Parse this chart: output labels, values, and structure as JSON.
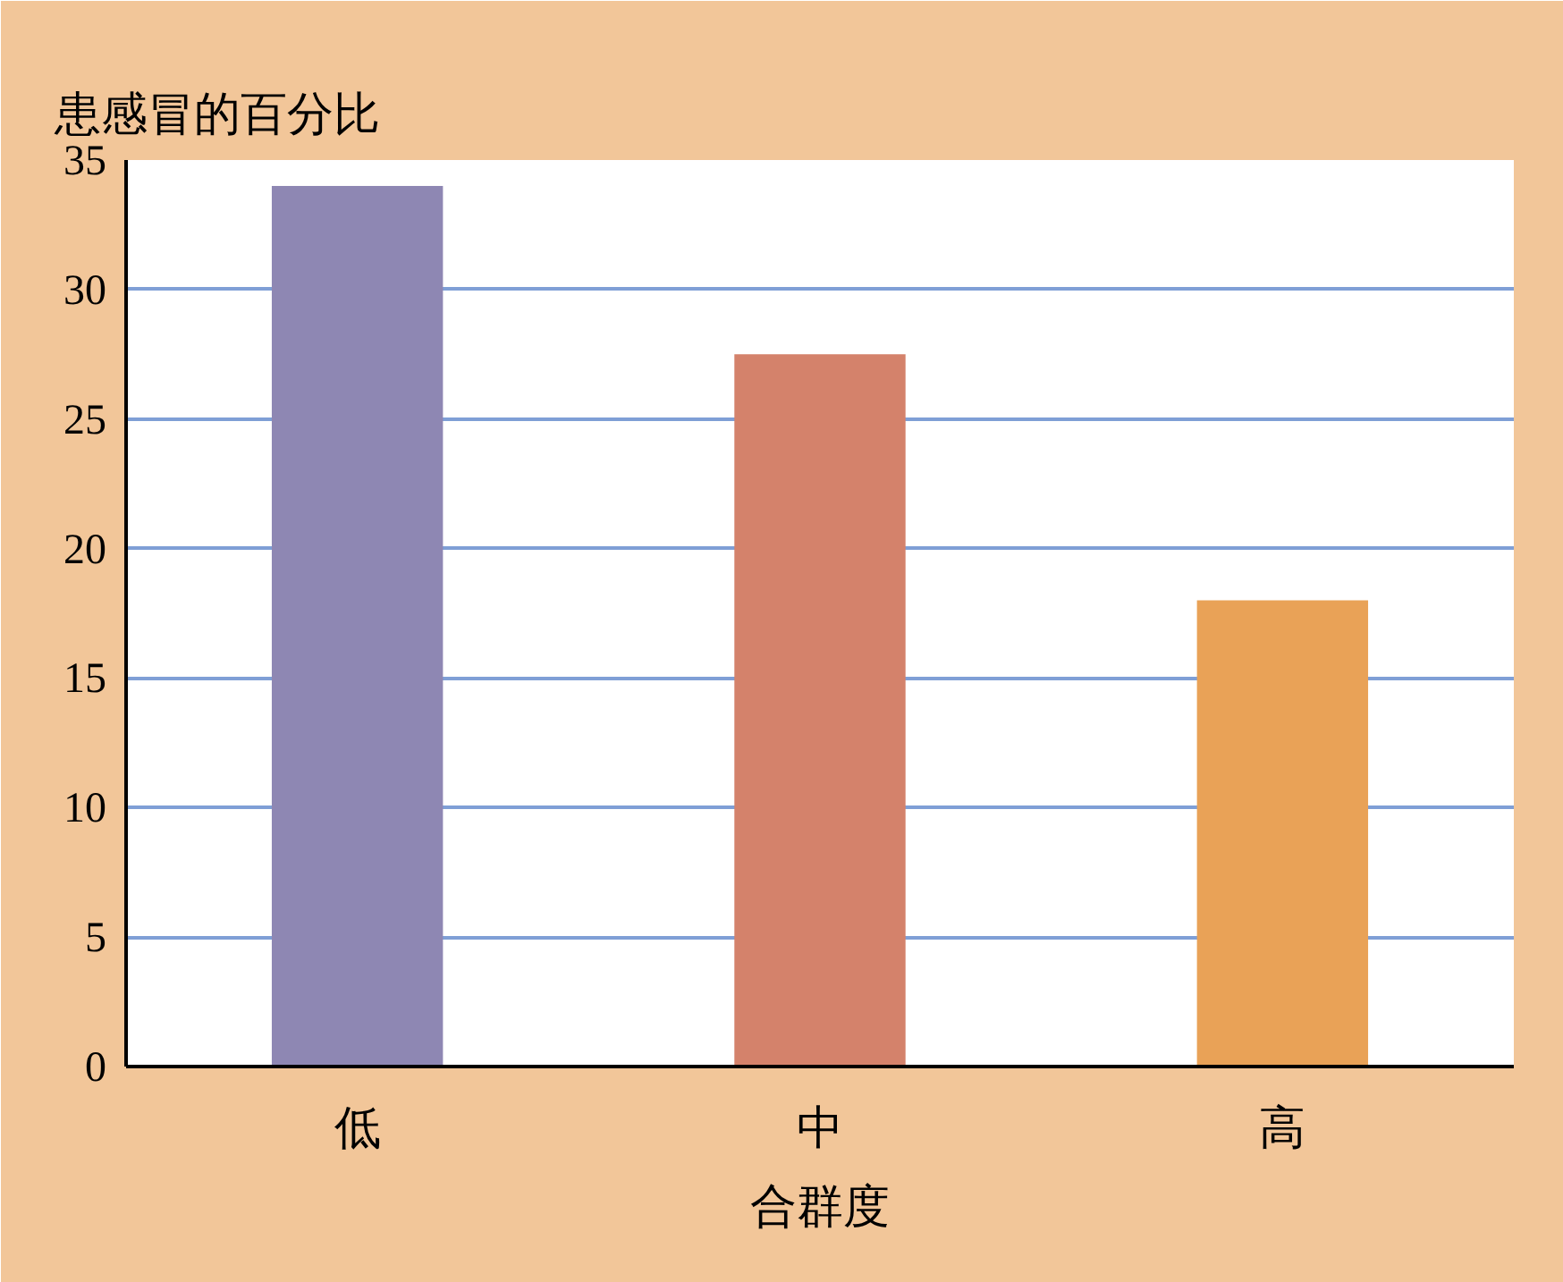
{
  "chart_data": {
    "type": "bar",
    "ylabel": "患感冒的百分比",
    "xlabel": "合群度",
    "categories": [
      "低",
      "中",
      "高"
    ],
    "values": [
      34,
      27.5,
      18
    ],
    "colors": [
      "#8e87b3",
      "#d4826b",
      "#e9a257"
    ],
    "ylim": [
      0,
      35
    ],
    "yticks": [
      0,
      5,
      10,
      15,
      20,
      25,
      30,
      35
    ],
    "grid": "y"
  }
}
